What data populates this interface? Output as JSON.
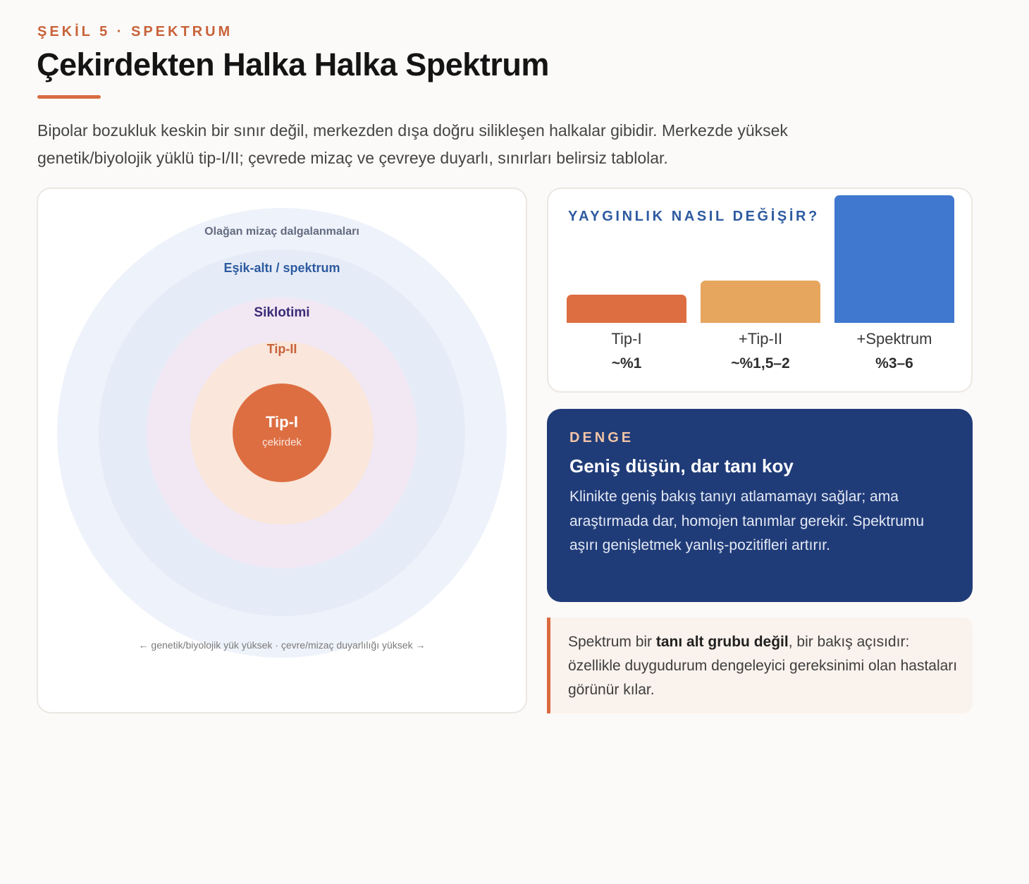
{
  "header": {
    "eyebrow": "ŞEKİL 5 · SPEKTRUM",
    "title": "Çekirdekten Halka Halka Spektrum",
    "intro": "Bipolar bozukluk keskin bir sınır değil, merkezden dışa doğru silikleşen halkalar gibidir. Merkezde yüksek genetik/biyolojik yüklü tip-I/II; çevrede mizaç ve çevreye duyarlı, sınırları belirsiz tablolar."
  },
  "diagram": {
    "rings": [
      {
        "label": "Olağan mizaç dalgalanmaları",
        "color": "#eef2fa",
        "label_color": "#636b80"
      },
      {
        "label": "Eşik-altı / spektrum",
        "color": "#e6ecf7",
        "label_color": "#2d5aa0"
      },
      {
        "label": "Siklotimi",
        "color": "#f1e8f3",
        "label_color": "#3b2b78"
      },
      {
        "label": "Tip-II",
        "color": "#fae6da",
        "label_color": "#c8623a"
      }
    ],
    "core": {
      "title": "Tip-I",
      "subtitle": "çekirdek",
      "color": "#dd6e42"
    },
    "axis_caption": "← genetik/biyolojik yük yüksek · çevre/mizaç duyarlılığı yüksek →"
  },
  "chart_data": {
    "type": "bar",
    "title": "YAYGINLIK NASIL DEĞİŞİR?",
    "categories": [
      "Tip-I",
      "+Tip-II",
      "+Spektrum"
    ],
    "value_labels": [
      "~%1",
      "~%1,5–2",
      "%3–6"
    ],
    "values": [
      1,
      1.5,
      4.5
    ],
    "unit": "%",
    "colors": [
      "#dd6e42",
      "#e6a65e",
      "#4078d0"
    ],
    "ylim": [
      0,
      4.5
    ],
    "grid": false
  },
  "balance_card": {
    "eyebrow": "DENGE",
    "heading": "Geniş düşün, dar tanı koy",
    "body": "Klinikte geniş bakış tanıyı atlamamayı sağlar; ama araştırmada dar, homojen tanımlar gerekir. Spektrumu aşırı genişletmek yanlış-pozitifleri artırır."
  },
  "note": {
    "text_before": "Spektrum bir ",
    "text_bold": "tanı alt grubu değil",
    "text_after": ", bir bakış açısıdır: özellikle duygudurum dengeleyici gereksinimi olan hastaları görünür kılar."
  }
}
